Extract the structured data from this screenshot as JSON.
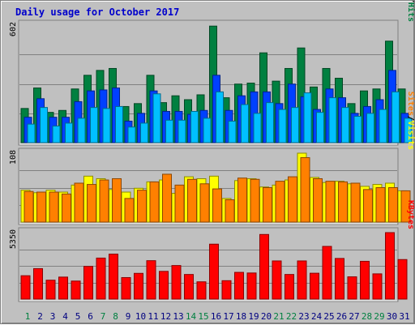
{
  "title": "Daily usage for October 2017",
  "colors": {
    "hits": "#008040",
    "files": "#0040ff",
    "pages": "#00c0ff",
    "visits": "#ffff00",
    "sites": "#ff8000",
    "kbytes": "#ff0000",
    "weekday_day": "#000080",
    "weekend_day": "#008040",
    "background": "#c0c0c0",
    "gridline": "#808080"
  },
  "chart_data": [
    {
      "type": "bar",
      "panel": "hits-files-pages",
      "max_label": "602",
      "ylim": [
        0,
        602
      ],
      "grid": true,
      "legend_parts": [
        "Pages",
        "/",
        "Files",
        "/",
        "Hits"
      ],
      "categories": [
        "1",
        "2",
        "3",
        "4",
        "5",
        "6",
        "7",
        "8",
        "9",
        "10",
        "11",
        "12",
        "13",
        "14",
        "15",
        "16",
        "17",
        "18",
        "19",
        "20",
        "21",
        "22",
        "23",
        "24",
        "25",
        "26",
        "27",
        "28",
        "29",
        "30",
        "31"
      ],
      "series": [
        {
          "name": "Hits",
          "values": [
            175,
            280,
            155,
            165,
            275,
            345,
            370,
            380,
            185,
            200,
            345,
            205,
            240,
            220,
            245,
            597,
            230,
            300,
            305,
            460,
            315,
            380,
            485,
            285,
            380,
            330,
            200,
            265,
            275,
            520,
            275
          ]
        },
        {
          "name": "Files",
          "values": [
            130,
            225,
            130,
            130,
            210,
            265,
            270,
            280,
            110,
            150,
            265,
            160,
            160,
            145,
            165,
            345,
            165,
            240,
            260,
            260,
            200,
            300,
            235,
            170,
            275,
            230,
            150,
            185,
            220,
            370,
            150
          ]
        },
        {
          "name": "Pages",
          "values": [
            95,
            180,
            85,
            100,
            125,
            180,
            175,
            185,
            80,
            100,
            250,
            115,
            115,
            160,
            125,
            260,
            110,
            195,
            150,
            205,
            170,
            180,
            255,
            155,
            230,
            180,
            135,
            150,
            170,
            260,
            125
          ]
        }
      ]
    },
    {
      "type": "bar",
      "panel": "visits-sites",
      "max_label": "108",
      "ylim": [
        0,
        108
      ],
      "grid": true,
      "legend_parts": [
        "Sites",
        "/",
        "Visits"
      ],
      "categories": [
        "1",
        "2",
        "3",
        "4",
        "5",
        "6",
        "7",
        "8",
        "9",
        "10",
        "11",
        "12",
        "13",
        "14",
        "15",
        "16",
        "17",
        "18",
        "19",
        "20",
        "21",
        "22",
        "23",
        "24",
        "25",
        "26",
        "27",
        "28",
        "29",
        "30",
        "31"
      ],
      "series": [
        {
          "name": "Visits",
          "values": [
            50,
            46,
            50,
            47,
            58,
            72,
            68,
            51,
            47,
            53,
            63,
            66,
            45,
            71,
            68,
            72,
            37,
            65,
            68,
            55,
            58,
            66,
            108,
            70,
            62,
            64,
            60,
            56,
            59,
            61,
            49
          ]
        },
        {
          "name": "Sites",
          "values": [
            48,
            47,
            47,
            44,
            61,
            59,
            66,
            68,
            37,
            50,
            63,
            75,
            58,
            67,
            60,
            52,
            35,
            69,
            67,
            54,
            64,
            71,
            101,
            68,
            64,
            63,
            61,
            51,
            54,
            54,
            49
          ]
        }
      ]
    },
    {
      "type": "bar",
      "panel": "kbytes",
      "max_label": "5350",
      "ylim": [
        0,
        5350
      ],
      "grid": true,
      "legend_parts": [
        "KBytes"
      ],
      "categories": [
        "1",
        "2",
        "3",
        "4",
        "5",
        "6",
        "7",
        "8",
        "9",
        "10",
        "11",
        "12",
        "13",
        "14",
        "15",
        "16",
        "17",
        "18",
        "19",
        "20",
        "21",
        "22",
        "23",
        "24",
        "25",
        "26",
        "27",
        "28",
        "29",
        "30",
        "31"
      ],
      "series": [
        {
          "name": "KBytes",
          "values": [
            1880,
            2450,
            1520,
            1770,
            1450,
            2630,
            3300,
            3620,
            1730,
            2070,
            3090,
            2230,
            2700,
            1980,
            1390,
            4420,
            1480,
            2150,
            2100,
            5200,
            3070,
            1980,
            3070,
            2080,
            4240,
            3270,
            1790,
            3040,
            2030,
            5350,
            3180
          ]
        }
      ]
    }
  ]
}
